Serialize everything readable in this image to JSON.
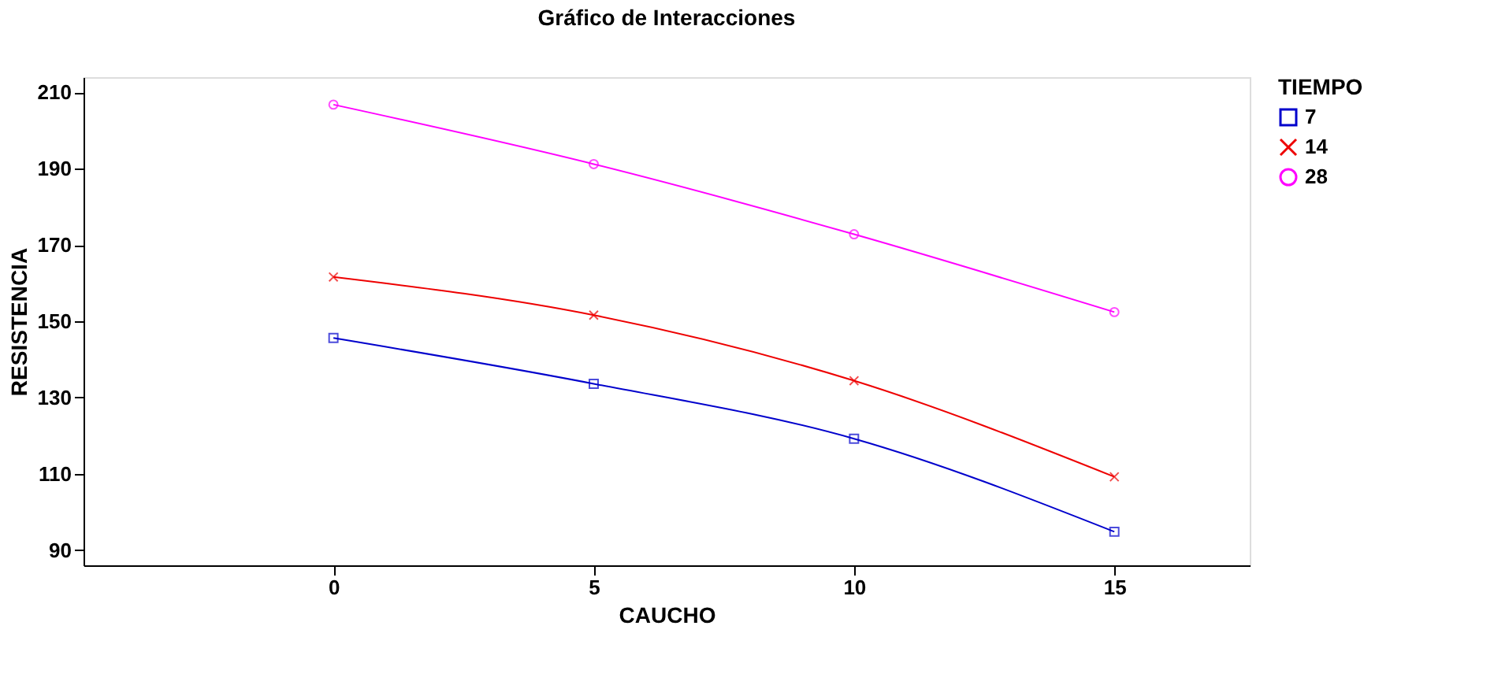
{
  "chart_data": {
    "type": "line",
    "title": "Gráfico de Interacciones",
    "xlabel": "CAUCHO",
    "ylabel": "RESISTENCIA",
    "legend_title": "TIEMPO",
    "legend": "top right",
    "grid": false,
    "x": [
      0,
      5,
      10,
      15
    ],
    "xlim": [
      -4.8,
      17.6
    ],
    "xticks": [
      0,
      5,
      10,
      15
    ],
    "ylim": [
      86,
      214
    ],
    "yticks": [
      90,
      110,
      130,
      150,
      170,
      190,
      210
    ],
    "series": [
      {
        "name": "7",
        "color": "#0000cc",
        "marker": "square",
        "values": [
          145.6,
          133.6,
          119.2,
          94.8
        ]
      },
      {
        "name": "14",
        "color": "#ee0000",
        "marker": "cross",
        "values": [
          161.6,
          151.6,
          134.4,
          109.2
        ]
      },
      {
        "name": "28",
        "color": "#ff00ff",
        "marker": "circle",
        "values": [
          206.8,
          191.2,
          172.8,
          152.4
        ]
      }
    ]
  }
}
